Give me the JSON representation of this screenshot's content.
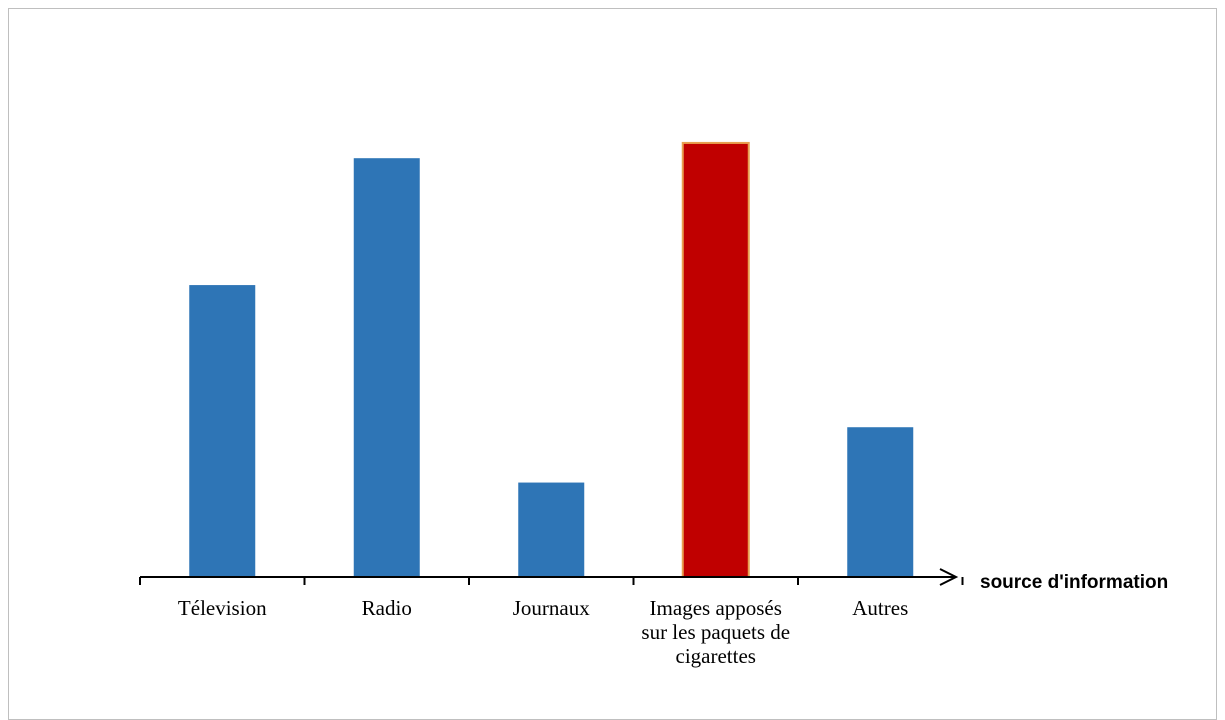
{
  "chart_data": {
    "type": "bar",
    "title": "",
    "xlabel": "source d'information",
    "ylabel": "",
    "categories": [
      "Télevision",
      "Radio",
      "Journaux",
      "Images apposés sur les paquets de cigarettes",
      "Autres"
    ],
    "values": [
      30.6,
      43.9,
      9.9,
      45.5,
      15.7
    ],
    "ylim": [
      0,
      50
    ],
    "grid": false,
    "legend": "none",
    "colors": {
      "default_bar": "#2E75B6",
      "highlight_bar": "#C00000",
      "highlight_border": "#E8A050"
    },
    "highlight_index": 3
  }
}
